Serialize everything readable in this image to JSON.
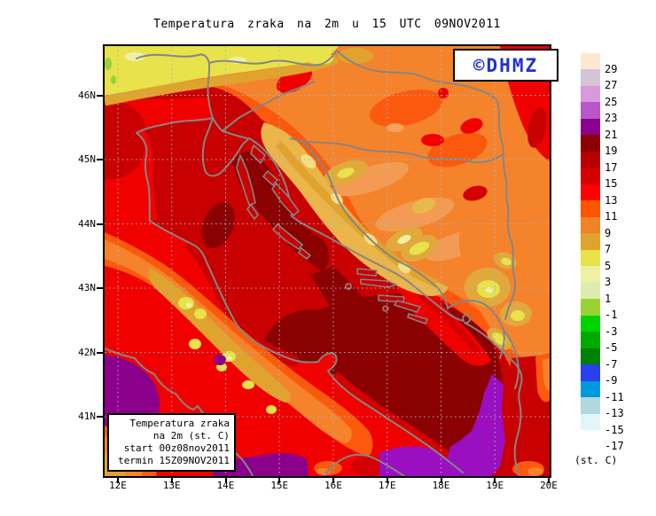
{
  "title": "Temperatura zraka na 2m u 15 UTC 09NOV2011",
  "logo": {
    "text": "©DHMZ",
    "color": "#2233cc"
  },
  "info_box": {
    "lines": [
      "Temperatura zraka",
      "na 2m (st. C)",
      "start 00z08nov2011",
      "termin 15Z09NOV2011"
    ]
  },
  "colorbar": {
    "units": "(st. C)",
    "entries": [
      {
        "label": "29",
        "color": "#fce8d0"
      },
      {
        "label": "27",
        "color": "#d4c4d8"
      },
      {
        "label": "25",
        "color": "#d89add"
      },
      {
        "label": "23",
        "color": "#b957c8"
      },
      {
        "label": "21",
        "color": "#8b008b"
      },
      {
        "label": "19",
        "color": "#8b0000"
      },
      {
        "label": "17",
        "color": "#b40000"
      },
      {
        "label": "15",
        "color": "#d40000"
      },
      {
        "label": "13",
        "color": "#ff0000"
      },
      {
        "label": "11",
        "color": "#ff5500"
      },
      {
        "label": "9",
        "color": "#f08228"
      },
      {
        "label": "7",
        "color": "#dfa32e"
      },
      {
        "label": "5",
        "color": "#e8e24b"
      },
      {
        "label": "3",
        "color": "#eef0a4"
      },
      {
        "label": "1",
        "color": "#dcecb0"
      },
      {
        "label": "-1",
        "color": "#9ad236"
      },
      {
        "label": "-3",
        "color": "#00d400"
      },
      {
        "label": "-5",
        "color": "#00aa00"
      },
      {
        "label": "-7",
        "color": "#008000"
      },
      {
        "label": "-9",
        "color": "#2a3fee"
      },
      {
        "label": "-11",
        "color": "#0099dd"
      },
      {
        "label": "-13",
        "color": "#b0d8dd"
      },
      {
        "label": "-15",
        "color": "#e2f6f8"
      },
      {
        "label": "-17",
        "color": "#ffffff"
      }
    ]
  },
  "axes": {
    "lat_labels": [
      "46N",
      "45N",
      "44N",
      "43N",
      "42N",
      "41N"
    ],
    "lon_labels": [
      "12E",
      "13E",
      "14E",
      "15E",
      "16E",
      "17E",
      "18E",
      "19E",
      "20E"
    ]
  }
}
